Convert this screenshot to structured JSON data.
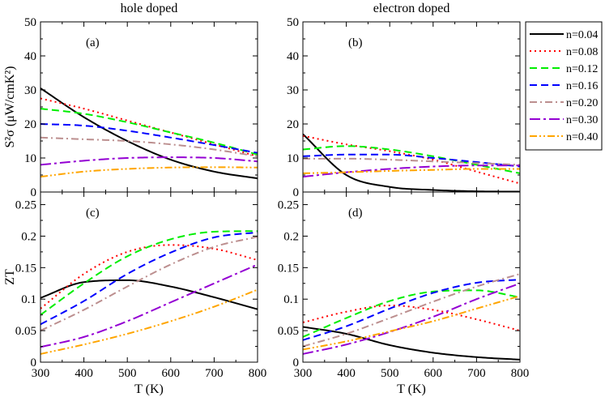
{
  "chart_data": {
    "type": "line",
    "column_titles": [
      "hole doped",
      "electron doped"
    ],
    "x_label": "T (K)",
    "x_range": [
      300,
      800
    ],
    "x_ticks": [
      300,
      400,
      500,
      600,
      700,
      800
    ],
    "legend": {
      "placement": "top-right",
      "entries": [
        {
          "name": "n=0.04",
          "color": "#000000",
          "dash": "solid"
        },
        {
          "name": "n=0.08",
          "color": "#ff0000",
          "dash": "dot"
        },
        {
          "name": "n=0.12",
          "color": "#00ee00",
          "dash": "dash"
        },
        {
          "name": "n=0.16",
          "color": "#0000ff",
          "dash": "dash"
        },
        {
          "name": "n=0.20",
          "color": "#bc8f8f",
          "dash": "dashdot"
        },
        {
          "name": "n=0.30",
          "color": "#9400d3",
          "dash": "longdashdot"
        },
        {
          "name": "n=0.40",
          "color": "#ffa500",
          "dash": "dashdotdot"
        }
      ]
    },
    "panels": [
      {
        "id": "a",
        "label": "(a)",
        "y_label": "S²σ (μW/cmK²)",
        "y_range": [
          0,
          50
        ],
        "y_ticks": [
          0,
          10,
          20,
          30,
          40,
          50
        ],
        "x": [
          300,
          400,
          500,
          600,
          700,
          800
        ],
        "series": [
          {
            "name": "n=0.04",
            "values": [
              30.5,
              22.0,
              15.0,
              9.5,
              6.0,
              4.0
            ]
          },
          {
            "name": "n=0.08",
            "values": [
              27.5,
              24.5,
              21.0,
              17.5,
              14.0,
              10.5
            ]
          },
          {
            "name": "n=0.12",
            "values": [
              24.5,
              23.0,
              20.5,
              17.5,
              14.5,
              11.0
            ]
          },
          {
            "name": "n=0.16",
            "values": [
              20.0,
              19.5,
              18.0,
              16.0,
              13.8,
              11.5
            ]
          },
          {
            "name": "n=0.20",
            "values": [
              16.0,
              15.5,
              15.0,
              14.0,
              12.5,
              10.5
            ]
          },
          {
            "name": "n=0.30",
            "values": [
              8.0,
              9.2,
              10.0,
              10.2,
              10.0,
              9.0
            ]
          },
          {
            "name": "n=0.40",
            "values": [
              4.5,
              6.0,
              6.8,
              7.2,
              7.3,
              7.2
            ]
          }
        ]
      },
      {
        "id": "b",
        "label": "(b)",
        "y_label": "",
        "y_range": [
          0,
          50
        ],
        "y_ticks": [
          0,
          10,
          20,
          30,
          40,
          50
        ],
        "x": [
          300,
          400,
          500,
          600,
          700,
          800
        ],
        "series": [
          {
            "name": "n=0.04",
            "values": [
              17.0,
              5.0,
              1.5,
              0.6,
              0.2,
              0.1
            ]
          },
          {
            "name": "n=0.08",
            "values": [
              16.5,
              14.0,
              12.0,
              9.5,
              6.0,
              2.5
            ]
          },
          {
            "name": "n=0.12",
            "values": [
              12.5,
              13.5,
              12.5,
              10.5,
              8.0,
              5.5
            ]
          },
          {
            "name": "n=0.16",
            "values": [
              10.5,
              11.0,
              11.0,
              10.0,
              8.8,
              7.5
            ]
          },
          {
            "name": "n=0.20",
            "values": [
              9.8,
              9.8,
              9.5,
              9.0,
              8.5,
              8.0
            ]
          },
          {
            "name": "n=0.30",
            "values": [
              4.5,
              5.8,
              6.8,
              7.5,
              7.8,
              7.8
            ]
          },
          {
            "name": "n=0.40",
            "values": [
              5.5,
              5.8,
              6.2,
              6.5,
              6.8,
              6.8
            ]
          }
        ]
      },
      {
        "id": "c",
        "label": "(c)",
        "y_label": "ZT",
        "y_range": [
          0,
          0.27
        ],
        "y_ticks": [
          0,
          0.05,
          0.1,
          0.15,
          0.2,
          0.25
        ],
        "y_tick_labels": [
          "0",
          "0.05",
          "0.1",
          "0.15",
          "0.2",
          "0.25"
        ],
        "x": [
          300,
          400,
          500,
          600,
          700,
          800
        ],
        "series": [
          {
            "name": "n=0.04",
            "values": [
              0.102,
              0.127,
              0.13,
              0.12,
              0.103,
              0.084
            ]
          },
          {
            "name": "n=0.08",
            "values": [
              0.085,
              0.14,
              0.175,
              0.186,
              0.18,
              0.162
            ]
          },
          {
            "name": "n=0.12",
            "values": [
              0.075,
              0.125,
              0.168,
              0.195,
              0.207,
              0.208
            ]
          },
          {
            "name": "n=0.16",
            "values": [
              0.06,
              0.097,
              0.14,
              0.174,
              0.198,
              0.206
            ]
          },
          {
            "name": "n=0.20",
            "values": [
              0.05,
              0.083,
              0.12,
              0.155,
              0.183,
              0.199
            ]
          },
          {
            "name": "n=0.30",
            "values": [
              0.024,
              0.04,
              0.065,
              0.095,
              0.125,
              0.155
            ]
          },
          {
            "name": "n=0.40",
            "values": [
              0.013,
              0.028,
              0.045,
              0.065,
              0.088,
              0.115
            ]
          }
        ]
      },
      {
        "id": "d",
        "label": "(d)",
        "y_label": "",
        "y_range": [
          0,
          0.27
        ],
        "y_ticks": [
          0,
          0.05,
          0.1,
          0.15,
          0.2,
          0.25
        ],
        "y_tick_labels": [
          "0",
          "0.05",
          "0.1",
          "0.15",
          "0.2",
          "0.25"
        ],
        "x": [
          300,
          400,
          500,
          600,
          700,
          800
        ],
        "series": [
          {
            "name": "n=0.04",
            "values": [
              0.056,
              0.045,
              0.027,
              0.015,
              0.008,
              0.004
            ]
          },
          {
            "name": "n=0.08",
            "values": [
              0.063,
              0.08,
              0.09,
              0.083,
              0.068,
              0.05
            ]
          },
          {
            "name": "n=0.12",
            "values": [
              0.04,
              0.07,
              0.097,
              0.112,
              0.114,
              0.103
            ]
          },
          {
            "name": "n=0.16",
            "values": [
              0.035,
              0.057,
              0.085,
              0.11,
              0.126,
              0.131
            ]
          },
          {
            "name": "n=0.20",
            "values": [
              0.025,
              0.045,
              0.07,
              0.096,
              0.12,
              0.14
            ]
          },
          {
            "name": "n=0.30",
            "values": [
              0.013,
              0.028,
              0.048,
              0.072,
              0.1,
              0.125
            ]
          },
          {
            "name": "n=0.40",
            "values": [
              0.02,
              0.033,
              0.049,
              0.065,
              0.085,
              0.105
            ]
          }
        ]
      }
    ]
  }
}
